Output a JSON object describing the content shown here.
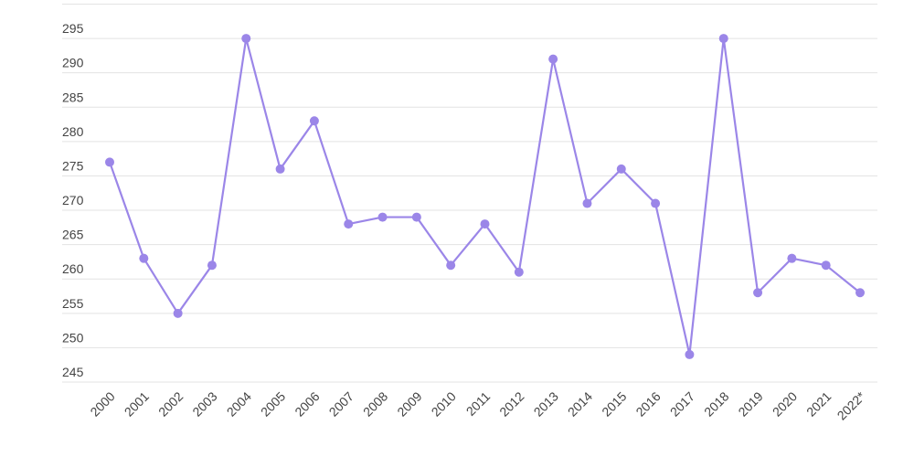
{
  "chart_data": {
    "type": "line",
    "categories": [
      "2000",
      "2001",
      "2002",
      "2003",
      "2004",
      "2005",
      "2006",
      "2007",
      "2008",
      "2009",
      "2010",
      "2011",
      "2012",
      "2013",
      "2014",
      "2015",
      "2016",
      "2017",
      "2018",
      "2019",
      "2020",
      "2021",
      "2022*"
    ],
    "series": [
      {
        "color": "#9b86e8",
        "values": [
          277,
          263,
          255,
          262,
          295,
          276,
          283,
          268,
          269,
          269,
          262,
          268,
          261,
          292,
          271,
          276,
          271,
          249,
          295,
          258,
          263,
          262,
          258
        ]
      }
    ],
    "ylim": [
      245,
      300
    ],
    "yticks": [
      245,
      250,
      255,
      260,
      265,
      270,
      275,
      280,
      285,
      290,
      295,
      300
    ],
    "grid": true
  }
}
